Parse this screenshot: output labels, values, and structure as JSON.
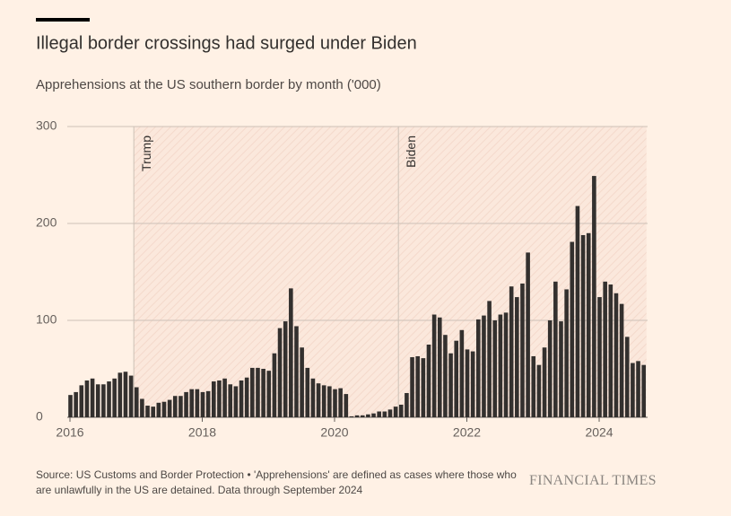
{
  "chart_data": {
    "type": "bar",
    "title": "Illegal border crossings had surged under Biden",
    "subtitle": "Apprehensions at the US southern border by month ('000)",
    "source": "Source: US Customs and Border Protection • 'Apprehensions' are defined as cases where those who are unlawfully in the US are detained. Data through September 2024",
    "brand": "FINANCIAL TIMES",
    "categories": [
      "2016",
      null,
      null,
      null,
      null,
      null,
      null,
      null,
      null,
      null,
      null,
      null,
      null,
      null,
      null,
      null,
      null,
      null,
      null,
      null,
      null,
      null,
      null,
      null,
      "2018",
      null,
      null,
      null,
      null,
      null,
      null,
      null,
      null,
      null,
      null,
      null,
      null,
      null,
      null,
      null,
      null,
      null,
      null,
      null,
      null,
      null,
      null,
      null,
      "2020",
      null,
      null,
      null,
      null,
      null,
      null,
      null,
      null,
      null,
      null,
      null,
      null,
      null,
      null,
      null,
      null,
      null,
      null,
      null,
      null,
      null,
      null,
      null,
      "2022",
      null,
      null,
      null,
      null,
      null,
      null,
      null,
      null,
      null,
      null,
      null,
      null,
      null,
      null,
      null,
      null,
      null,
      null,
      null,
      null,
      null,
      null,
      null,
      "2024",
      null,
      null,
      null,
      null,
      null,
      null,
      null,
      null
    ],
    "values": [
      23,
      26,
      33,
      38,
      40,
      34,
      34,
      37,
      40,
      46,
      47,
      43,
      31,
      19,
      12,
      11,
      15,
      16,
      18,
      22,
      22,
      26,
      29,
      29,
      26,
      27,
      37,
      38,
      40,
      34,
      32,
      38,
      41,
      51,
      51,
      50,
      48,
      66,
      92,
      99,
      133,
      94,
      72,
      51,
      40,
      35,
      33,
      32,
      29,
      30,
      24,
      1,
      2,
      2,
      3,
      4,
      6,
      6,
      8,
      11,
      13,
      25,
      62,
      63,
      61,
      75,
      106,
      103,
      85,
      66,
      79,
      90,
      70,
      68,
      101,
      105,
      120,
      100,
      106,
      108,
      135,
      124,
      138,
      170,
      63,
      54,
      72,
      100,
      140,
      99,
      132,
      181,
      218,
      188,
      190,
      249,
      124,
      140,
      137,
      128,
      117,
      83,
      56,
      58,
      54
    ],
    "color": "#33302e",
    "ylim": [
      0,
      300
    ],
    "yticks": [
      0,
      100,
      200,
      300
    ],
    "grid": true,
    "annotations": [
      {
        "label": "Trump",
        "start": 12,
        "end": 60
      },
      {
        "label": "Biden",
        "start": 60,
        "end": 105
      }
    ]
  }
}
